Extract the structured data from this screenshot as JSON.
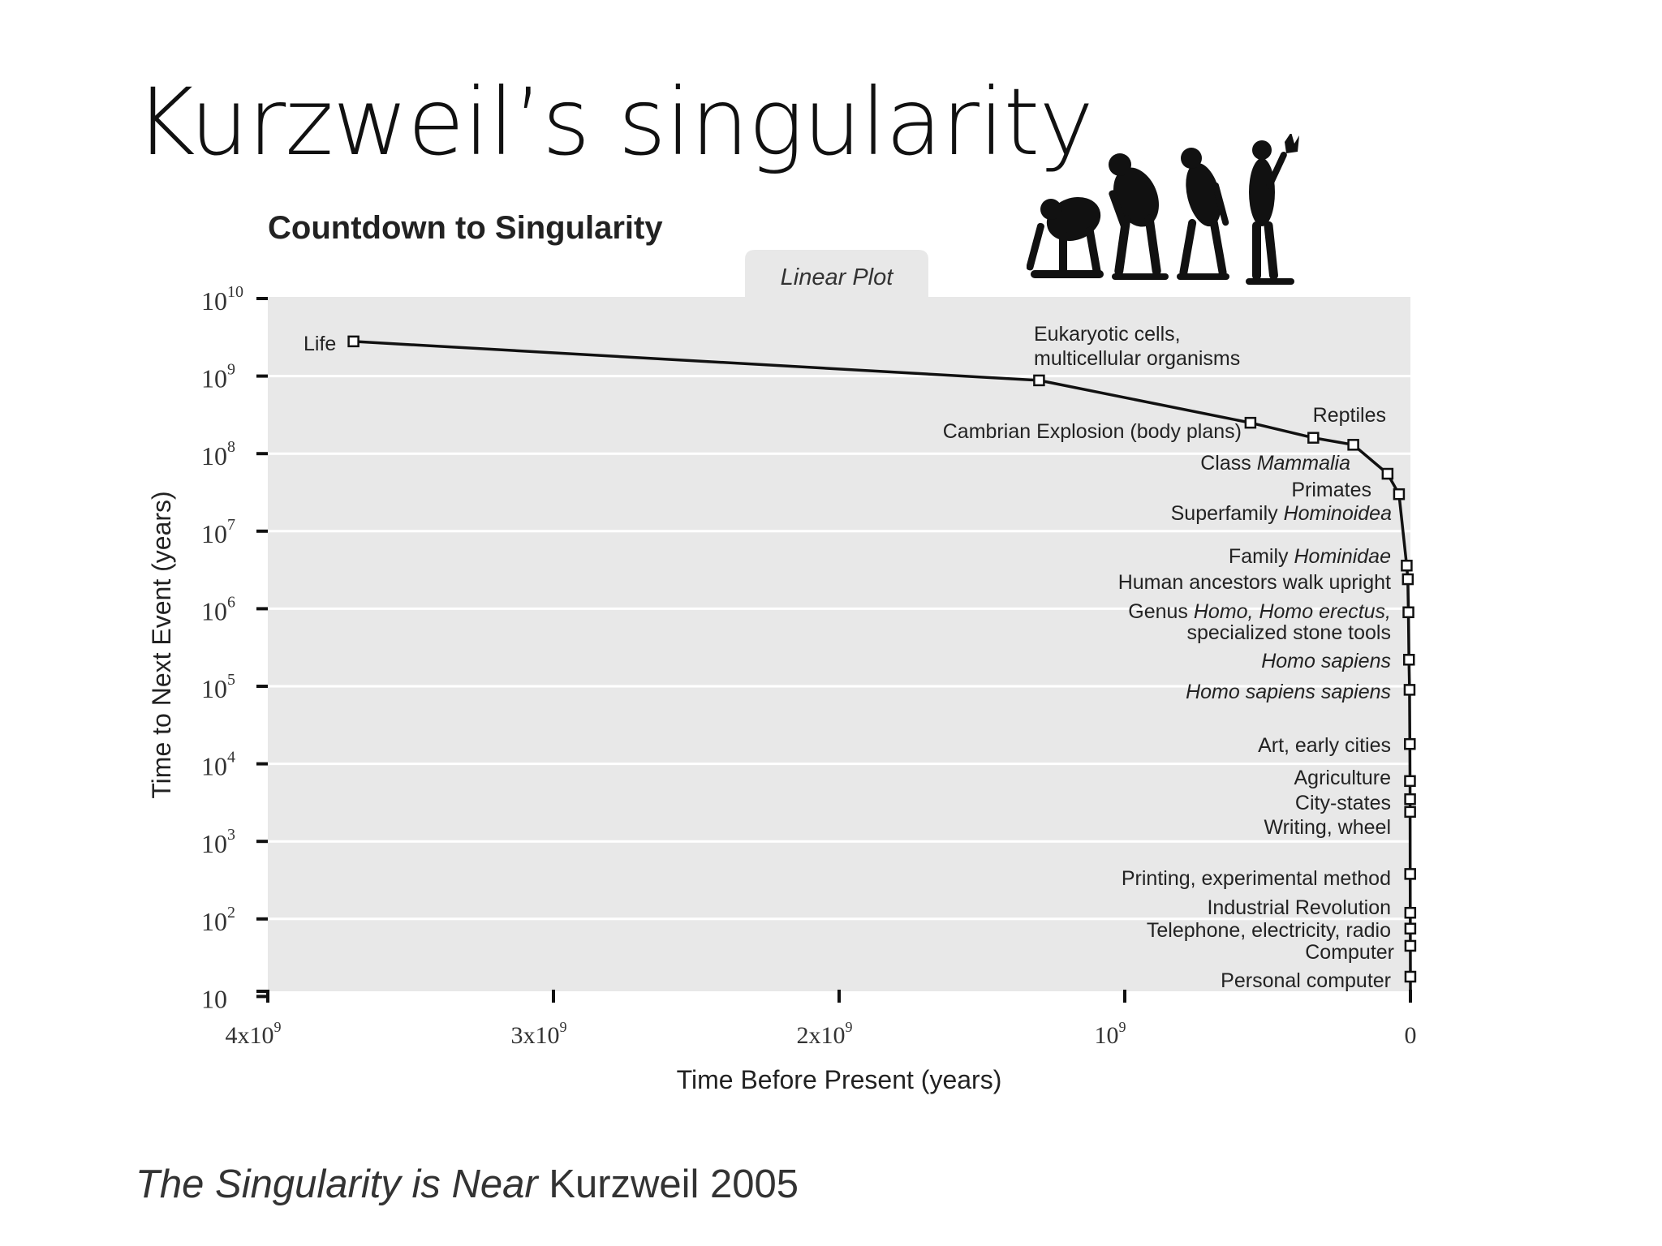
{
  "slide": {
    "title": "Kurzweil’s singularity",
    "caption_book": "The Singularity is Near",
    "caption_rest": " Kurzweil 2005"
  },
  "illustration": {
    "icon": "human-evolution-silhouettes-icon"
  },
  "colors": {
    "plot_bg": "#e8e8e8",
    "grid": "#ffffff",
    "line": "#111111",
    "text": "#222222"
  },
  "chart_data": {
    "type": "line",
    "title": "Countdown to Singularity",
    "tab_label": "Linear Plot",
    "xlabel": "Time Before Present (years)",
    "ylabel": "Time to Next Event (years)",
    "x_scale": "linear",
    "y_scale": "log",
    "xlim": [
      4000000000,
      0
    ],
    "ylim": [
      10,
      10000000000
    ],
    "x_ticks": [
      {
        "value": 4000000000,
        "base": "4x10",
        "exp": "9"
      },
      {
        "value": 3000000000,
        "base": "3x10",
        "exp": "9"
      },
      {
        "value": 2000000000,
        "base": "2x10",
        "exp": "9"
      },
      {
        "value": 1000000000,
        "base": "10",
        "exp": "9"
      },
      {
        "value": 0,
        "base": "0",
        "exp": ""
      }
    ],
    "y_ticks": [
      {
        "value": 10000000000,
        "base": "10",
        "exp": "10"
      },
      {
        "value": 1000000000,
        "base": "10",
        "exp": "9"
      },
      {
        "value": 100000000,
        "base": "10",
        "exp": "8"
      },
      {
        "value": 10000000,
        "base": "10",
        "exp": "7"
      },
      {
        "value": 1000000,
        "base": "10",
        "exp": "6"
      },
      {
        "value": 100000,
        "base": "10",
        "exp": "5"
      },
      {
        "value": 10000,
        "base": "10",
        "exp": "4"
      },
      {
        "value": 1000,
        "base": "10",
        "exp": "3"
      },
      {
        "value": 100,
        "base": "10",
        "exp": "2"
      },
      {
        "value": 10,
        "base": "10",
        "exp": ""
      }
    ],
    "grid": true,
    "points": [
      {
        "x": 3700000000,
        "y": 2800000000
      },
      {
        "x": 1300000000,
        "y": 880000000
      },
      {
        "x": 560000000,
        "y": 250000000
      },
      {
        "x": 340000000,
        "y": 160000000
      },
      {
        "x": 200000000,
        "y": 130000000
      },
      {
        "x": 80000000,
        "y": 55000000
      },
      {
        "x": 40000000,
        "y": 30000000
      },
      {
        "x": 13000000,
        "y": 3600000
      },
      {
        "x": 9000000,
        "y": 2400000
      },
      {
        "x": 7000000,
        "y": 900000
      },
      {
        "x": 5000000,
        "y": 220000
      },
      {
        "x": 3000000,
        "y": 90000
      },
      {
        "x": 2000000,
        "y": 18000
      },
      {
        "x": 1500000,
        "y": 6000
      },
      {
        "x": 1200000,
        "y": 3500
      },
      {
        "x": 1000000,
        "y": 2400
      },
      {
        "x": 800000,
        "y": 380
      },
      {
        "x": 500000,
        "y": 120
      },
      {
        "x": 300000,
        "y": 75
      },
      {
        "x": 200000,
        "y": 45
      },
      {
        "x": 100000,
        "y": 18
      }
    ],
    "annotations": [
      {
        "lines": [
          "Life"
        ],
        "italic": []
      },
      {
        "lines": [
          "Eukaryotic cells,",
          "multicellular organisms"
        ],
        "italic": []
      },
      {
        "lines": [
          "Cambrian Explosion (body plans)"
        ],
        "italic": []
      },
      {
        "lines": [
          "Reptiles"
        ],
        "italic": []
      },
      {
        "lines": [
          "Class Mammalia"
        ],
        "italic": [
          "Mammalia"
        ]
      },
      {
        "lines": [
          "Primates"
        ],
        "italic": []
      },
      {
        "lines": [
          "Superfamily Hominoidea"
        ],
        "italic": [
          "Hominoidea"
        ]
      },
      {
        "lines": [
          "Family Hominidae"
        ],
        "italic": [
          "Hominidae"
        ]
      },
      {
        "lines": [
          "Human ancestors walk upright"
        ],
        "italic": []
      },
      {
        "lines": [
          "Genus Homo, Homo erectus,",
          "specialized stone tools"
        ],
        "italic": [
          "Homo, Homo erectus,"
        ]
      },
      {
        "lines": [
          "Homo sapiens"
        ],
        "italic": [
          "Homo sapiens"
        ]
      },
      {
        "lines": [
          "Homo sapiens sapiens"
        ],
        "italic": [
          "Homo sapiens sapiens"
        ]
      },
      {
        "lines": [
          "Art, early cities"
        ],
        "italic": []
      },
      {
        "lines": [
          "Agriculture"
        ],
        "italic": []
      },
      {
        "lines": [
          "City-states"
        ],
        "italic": []
      },
      {
        "lines": [
          "Writing, wheel"
        ],
        "italic": []
      },
      {
        "lines": [
          "Printing, experimental method"
        ],
        "italic": []
      },
      {
        "lines": [
          "Industrial Revolution"
        ],
        "italic": []
      },
      {
        "lines": [
          "Telephone,  electricity, radio"
        ],
        "italic": []
      },
      {
        "lines": [
          "Computer"
        ],
        "italic": []
      },
      {
        "lines": [
          "Personal computer"
        ],
        "italic": []
      }
    ]
  }
}
